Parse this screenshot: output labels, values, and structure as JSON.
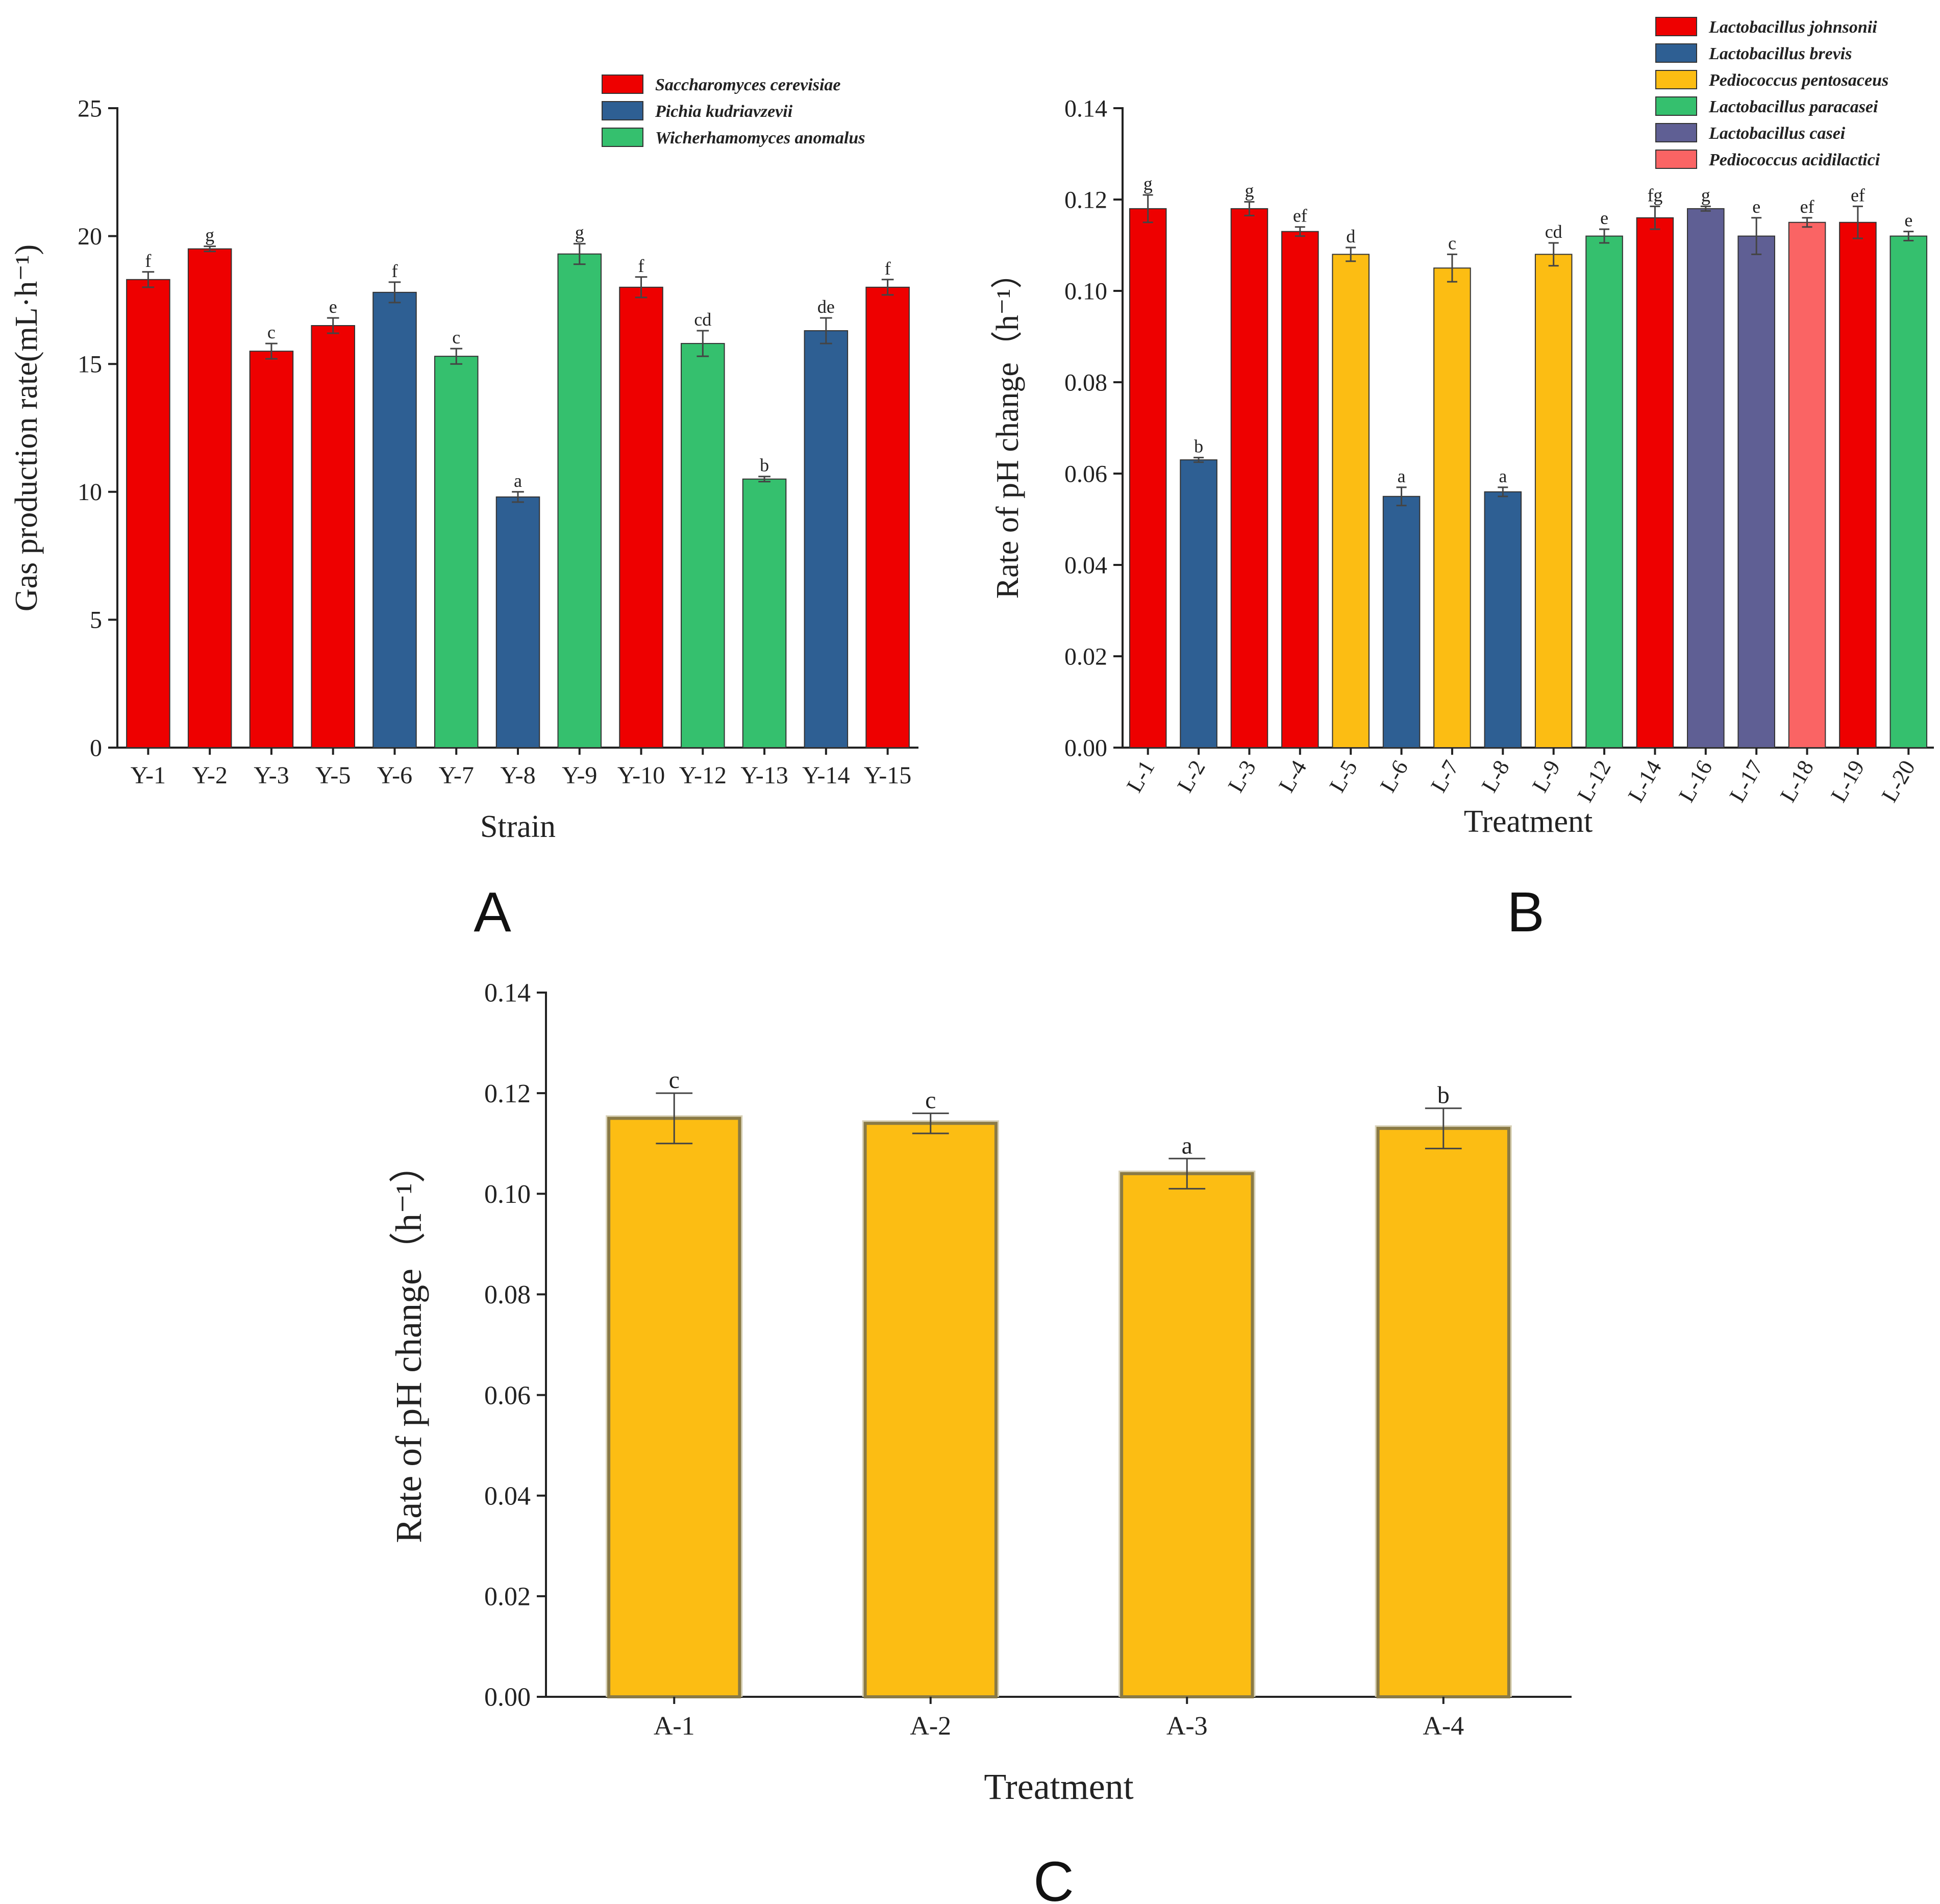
{
  "chart_data": [
    {
      "panel": "A",
      "type": "bar",
      "xlabel": "Strain",
      "ylabel": "Gas production rate(mL·h⁻¹)",
      "ylim": [
        0,
        25
      ],
      "yticks": [
        "0",
        "5",
        "10",
        "15",
        "20",
        "25"
      ],
      "legend_position": "top-right",
      "legend": [
        {
          "name": "Saccharomyces cerevisiae",
          "color": "#ee0000"
        },
        {
          "name": "Pichia kudriavzevii",
          "color": "#2e5f93"
        },
        {
          "name": "Wicherhamomyces anomalus",
          "color": "#35c06e"
        }
      ],
      "categories": [
        "Y-1",
        "Y-2",
        "Y-3",
        "Y-5",
        "Y-6",
        "Y-7",
        "Y-8",
        "Y-9",
        "Y-10",
        "Y-12",
        "Y-13",
        "Y-14",
        "Y-15"
      ],
      "values": [
        18.3,
        19.5,
        15.5,
        16.5,
        17.8,
        15.3,
        9.8,
        19.3,
        18.0,
        15.8,
        10.5,
        16.3,
        18.0
      ],
      "errors": [
        0.3,
        0.1,
        0.3,
        0.3,
        0.4,
        0.3,
        0.2,
        0.4,
        0.4,
        0.5,
        0.1,
        0.5,
        0.3
      ],
      "group": [
        0,
        0,
        0,
        0,
        1,
        2,
        1,
        2,
        0,
        2,
        2,
        1,
        0
      ],
      "letters": [
        "f",
        "g",
        "c",
        "e",
        "f",
        "c",
        "a",
        "g",
        "f",
        "cd",
        "b",
        "de",
        "f"
      ]
    },
    {
      "panel": "B",
      "type": "bar",
      "xlabel": "Treatment",
      "ylabel": "Rate of pH change（h⁻¹）",
      "ylim": [
        0,
        0.14
      ],
      "yticks": [
        "0.00",
        "0.02",
        "0.04",
        "0.06",
        "0.08",
        "0.10",
        "0.12",
        "0.14"
      ],
      "legend_position": "top-right",
      "legend": [
        {
          "name": "Lactobacillus johnsonii",
          "color": "#ee0000"
        },
        {
          "name": "Lactobacillus brevis",
          "color": "#2e5f93"
        },
        {
          "name": "Pediococcus pentosaceus",
          "color": "#fcbd13"
        },
        {
          "name": "Lactobacillus paracasei",
          "color": "#35c06e"
        },
        {
          "name": "Lactobacillus casei",
          "color": "#5f5f94"
        },
        {
          "name": "Pediococcus acidilactici",
          "color": "#fa6464"
        }
      ],
      "categories": [
        "L-1",
        "L-2",
        "L-3",
        "L-4",
        "L-5",
        "L-6",
        "L-7",
        "L-8",
        "L-9",
        "L-12",
        "L-14",
        "L-16",
        "L-17",
        "L-18",
        "L-19",
        "L-20"
      ],
      "values": [
        0.118,
        0.063,
        0.118,
        0.113,
        0.108,
        0.055,
        0.105,
        0.056,
        0.108,
        0.112,
        0.116,
        0.118,
        0.112,
        0.115,
        0.115,
        0.112
      ],
      "errors": [
        0.003,
        0.0005,
        0.0015,
        0.001,
        0.0015,
        0.002,
        0.003,
        0.001,
        0.0025,
        0.0015,
        0.0025,
        0.0005,
        0.004,
        0.001,
        0.0035,
        0.001
      ],
      "group": [
        0,
        1,
        0,
        0,
        2,
        1,
        2,
        1,
        2,
        3,
        0,
        4,
        4,
        5,
        0,
        3
      ],
      "letters": [
        "g",
        "b",
        "g",
        "ef",
        "d",
        "a",
        "c",
        "a",
        "cd",
        "e",
        "fg",
        "g",
        "e",
        "ef",
        "ef",
        "e"
      ]
    },
    {
      "panel": "C",
      "type": "bar",
      "xlabel": "Treatment",
      "ylabel": "Rate of pH change（h⁻¹）",
      "ylim": [
        0,
        0.14
      ],
      "yticks": [
        "0.00",
        "0.02",
        "0.04",
        "0.06",
        "0.08",
        "0.10",
        "0.12",
        "0.14"
      ],
      "categories": [
        "A-1",
        "A-2",
        "A-3",
        "A-4"
      ],
      "values": [
        0.115,
        0.114,
        0.104,
        0.113
      ],
      "errors": [
        0.005,
        0.002,
        0.003,
        0.004
      ],
      "letters": [
        "c",
        "c",
        "a",
        "b"
      ],
      "color": "#fcbd13"
    }
  ],
  "panel_letters": [
    "A",
    "B",
    "C"
  ]
}
